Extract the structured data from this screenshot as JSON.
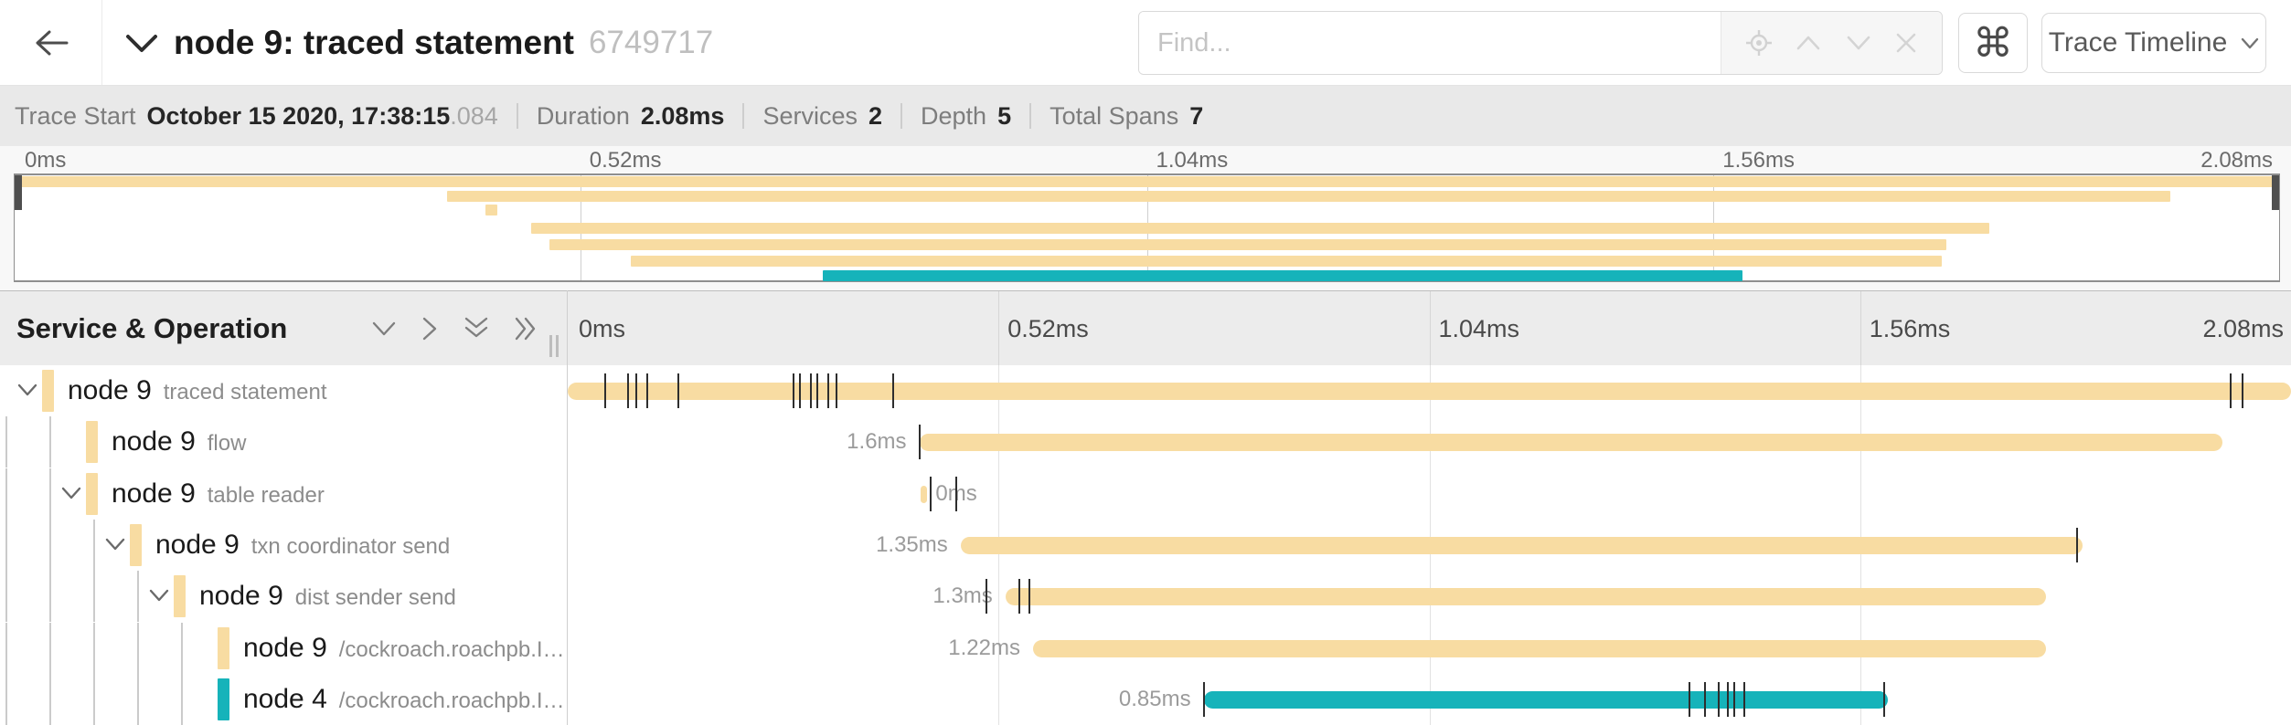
{
  "header": {
    "title": "node 9: traced statement",
    "trace_id": "6749717",
    "find_placeholder": "Find...",
    "command_symbol": "⌘",
    "view_selector_label": "Trace Timeline"
  },
  "icons": [
    "back-arrow-icon",
    "chevron-down-icon",
    "locate-icon",
    "chevron-up-icon",
    "chevron-down-small-icon",
    "close-icon",
    "command-icon",
    "expand-one-chevron-icon",
    "collapse-one-chevron-icon",
    "expand-all-chevron-icon",
    "collapse-all-chevron-icon"
  ],
  "trace_summary": {
    "items": [
      {
        "label": "Trace Start",
        "value": "October 15 2020, 17:38:15",
        "suffix": ".084"
      },
      {
        "label": "Duration",
        "value": "2.08ms",
        "suffix": ""
      },
      {
        "label": "Services",
        "value": "2",
        "suffix": ""
      },
      {
        "label": "Depth",
        "value": "5",
        "suffix": ""
      },
      {
        "label": "Total Spans",
        "value": "7",
        "suffix": ""
      }
    ]
  },
  "time_ticks": [
    "0ms",
    "0.52ms",
    "1.04ms",
    "1.56ms",
    "2.08ms"
  ],
  "timeline_header": {
    "column_title": "Service & Operation"
  },
  "colors": {
    "span_tan": "#f8dca2",
    "span_teal": "#16b3ba",
    "log_tick": "#2e2e2e"
  },
  "minimap": {
    "bars": [
      {
        "start": 0,
        "end": 100,
        "color": "tan"
      },
      {
        "start": 19.1,
        "end": 95.2,
        "color": "tan"
      },
      {
        "start": 20.8,
        "end": 21.3,
        "color": "tan"
      },
      {
        "start": 22.8,
        "end": 87.2,
        "color": "tan"
      },
      {
        "start": 23.6,
        "end": 85.3,
        "color": "tan"
      },
      {
        "start": 27.2,
        "end": 85.1,
        "color": "tan"
      },
      {
        "start": 35.7,
        "end": 76.3,
        "color": "teal"
      }
    ]
  },
  "spans": [
    {
      "service": "node 9",
      "operation": "traced statement",
      "depth": 0,
      "has_children": true,
      "color": "tan",
      "start": 0,
      "end": 100,
      "duration_label": "",
      "label_position": "left",
      "ticks": [
        2.2,
        3.5,
        4.0,
        4.6,
        6.4,
        13.1,
        13.5,
        14.1,
        14.5,
        15.1,
        15.6,
        18.9,
        96.5,
        97.2
      ]
    },
    {
      "service": "node 9",
      "operation": "flow",
      "depth": 1,
      "has_children": false,
      "color": "tan",
      "start": 20.4,
      "end": 96.0,
      "duration_label": "1.6ms",
      "label_position": "left",
      "ticks": [
        20.4
      ]
    },
    {
      "service": "node 9",
      "operation": "table reader",
      "depth": 1,
      "has_children": true,
      "color": "tan",
      "start": 20.5,
      "end": 20.85,
      "duration_label": "0ms",
      "label_position": "right",
      "ticks": [
        21.05,
        22.55
      ]
    },
    {
      "service": "node 9",
      "operation": "txn coordinator send",
      "depth": 2,
      "has_children": true,
      "color": "tan",
      "start": 22.8,
      "end": 87.9,
      "duration_label": "1.35ms",
      "label_position": "left",
      "ticks": [
        87.6
      ]
    },
    {
      "service": "node 9",
      "operation": "dist sender send",
      "depth": 3,
      "has_children": true,
      "color": "tan",
      "start": 25.4,
      "end": 85.8,
      "duration_label": "1.3ms",
      "label_position": "left",
      "ticks": [
        24.3,
        26.2,
        26.8
      ]
    },
    {
      "service": "node 9",
      "operation": "/cockroach.roachpb.I…",
      "depth": 4,
      "has_children": false,
      "color": "tan",
      "start": 27.0,
      "end": 85.8,
      "duration_label": "1.22ms",
      "label_position": "left",
      "ticks": []
    },
    {
      "service": "node 4",
      "operation": "/cockroach.roachpb.I…",
      "depth": 4,
      "has_children": false,
      "color": "teal",
      "start": 36.9,
      "end": 76.6,
      "duration_label": "0.85ms",
      "label_position": "left",
      "ticks": [
        36.9,
        65.1,
        66.0,
        66.8,
        67.3,
        67.7,
        68.3,
        76.4
      ]
    }
  ]
}
